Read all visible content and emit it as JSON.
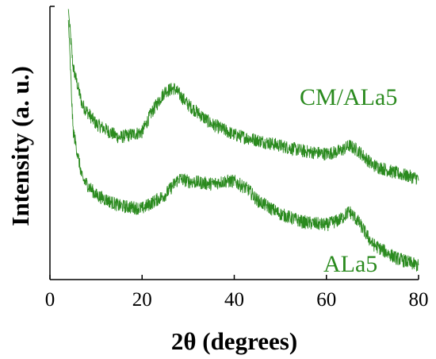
{
  "chart_data": {
    "type": "line",
    "xlabel": "2θ (degrees)",
    "ylabel": "Intensity (a. u.)",
    "xlim": [
      0,
      80
    ],
    "ylim": [
      0,
      1
    ],
    "xticks": [
      0,
      20,
      40,
      60,
      80
    ],
    "grid": false,
    "legend": "none",
    "line_color": "#2a8a1e",
    "series": [
      {
        "name": "CM/ALa5",
        "x": [
          4,
          5,
          7,
          10,
          15,
          20,
          22,
          25,
          27,
          30,
          35,
          40,
          45,
          50,
          55,
          60,
          63,
          65,
          67,
          70,
          75,
          80
        ],
        "y": [
          0.99,
          0.78,
          0.64,
          0.57,
          0.52,
          0.54,
          0.61,
          0.69,
          0.7,
          0.64,
          0.57,
          0.53,
          0.51,
          0.49,
          0.47,
          0.46,
          0.47,
          0.49,
          0.47,
          0.42,
          0.39,
          0.37
        ]
      },
      {
        "name": "ALa5",
        "x": [
          4,
          5,
          7,
          10,
          15,
          20,
          25,
          28,
          30,
          35,
          38,
          40,
          43,
          45,
          50,
          55,
          60,
          63,
          65,
          67,
          70,
          75,
          80
        ],
        "y": [
          0.95,
          0.55,
          0.37,
          0.31,
          0.27,
          0.26,
          0.31,
          0.37,
          0.36,
          0.35,
          0.36,
          0.36,
          0.33,
          0.29,
          0.24,
          0.21,
          0.2,
          0.22,
          0.25,
          0.21,
          0.13,
          0.08,
          0.05
        ]
      }
    ]
  }
}
